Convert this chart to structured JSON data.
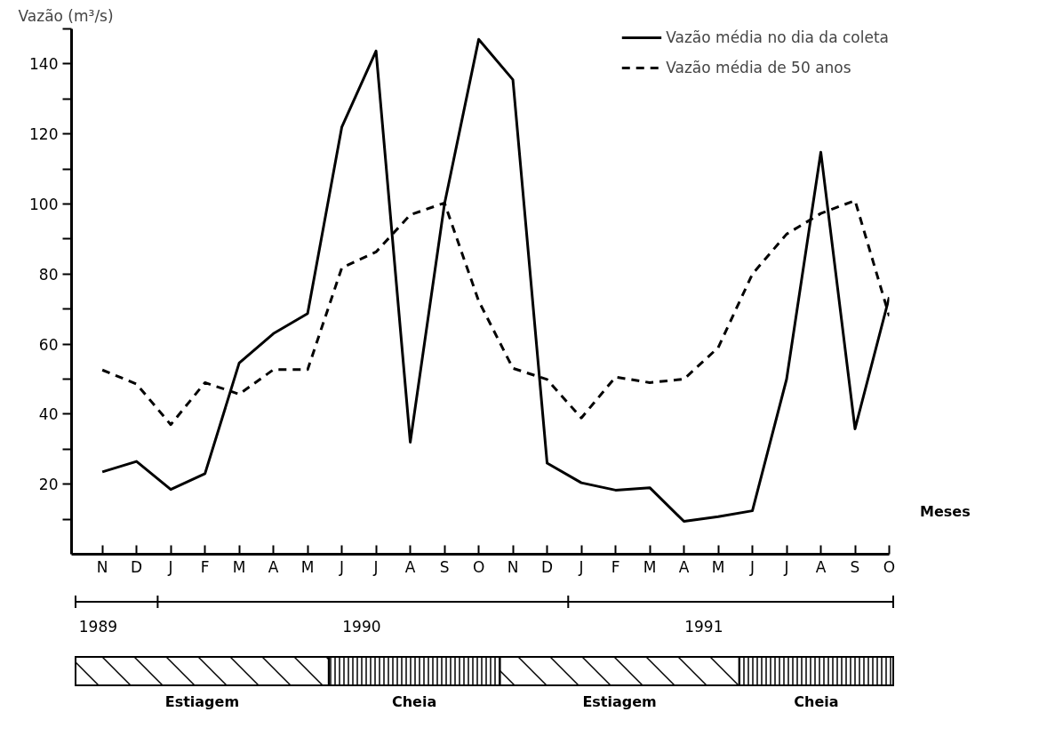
{
  "chart_data": {
    "type": "line",
    "ylabel": "Vazão (m³/s)",
    "xlabel": "Meses",
    "categories": [
      "N",
      "D",
      "J",
      "F",
      "M",
      "A",
      "M",
      "J",
      "J",
      "A",
      "S",
      "O",
      "N",
      "D",
      "J",
      "F",
      "M",
      "A",
      "M",
      "J",
      "J",
      "A",
      "S",
      "O"
    ],
    "series": [
      {
        "name": "Vazão média no dia da coleta",
        "color": "#000000",
        "line_style": "solid",
        "values": [
          23.5,
          26.5,
          18.5,
          23,
          54.6,
          63,
          68.7,
          122,
          143.7,
          32,
          100,
          147,
          135.5,
          26,
          20.4,
          18.3,
          19,
          9.4,
          10.7,
          12.4,
          50,
          114.8,
          35.8,
          73.4
        ]
      },
      {
        "name": "Vazão média de 50 anos",
        "color": "#000000",
        "line_style": "dashed",
        "values": [
          52.6,
          48.6,
          37,
          49,
          45.7,
          52.7,
          52.7,
          81.8,
          86.3,
          96.9,
          100.3,
          72.3,
          53.1,
          49.9,
          38.9,
          50.6,
          49,
          50,
          59,
          80,
          91.4,
          97.3,
          101,
          68
        ]
      }
    ],
    "ylim": [
      0,
      150
    ],
    "yticks": [
      {
        "value": 10,
        "label": null
      },
      20,
      {
        "value": 30,
        "label": null
      },
      40,
      {
        "value": 50,
        "label": null
      },
      60,
      {
        "value": 70,
        "label": null
      },
      80,
      {
        "value": 90,
        "label": null
      },
      100,
      {
        "value": 110,
        "label": null
      },
      120,
      {
        "value": 130,
        "label": null
      },
      140,
      {
        "value": 150,
        "label": null
      }
    ],
    "annotations": [
      "1989",
      "1990",
      "1991",
      "Estiagem",
      "Cheia",
      "Estiagem",
      "Cheia"
    ],
    "grid": false,
    "legend": "top right",
    "marker": "none"
  }
}
